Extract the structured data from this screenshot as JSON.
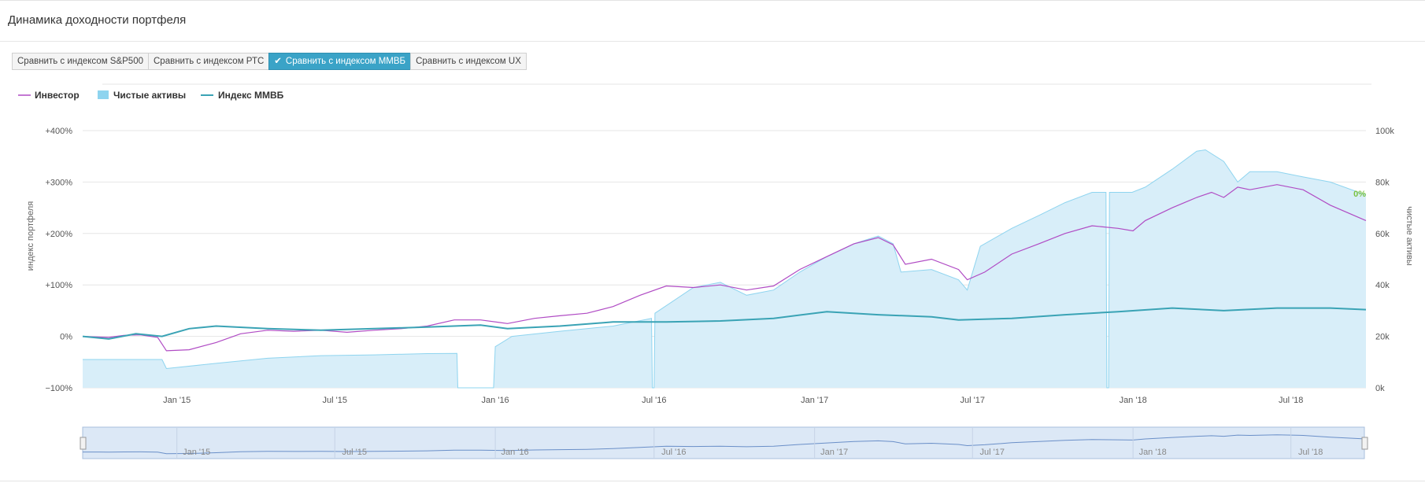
{
  "panel": {
    "title": "Динамика доходности портфеля"
  },
  "compare_buttons": [
    {
      "label": "Сравнить с индексом S&P500",
      "active": false
    },
    {
      "label": "Сравнить с индексом РТС",
      "active": false
    },
    {
      "label": "Сравнить с индексом ММВБ",
      "active": true
    },
    {
      "label": "Сравнить с индексом UX",
      "active": false
    }
  ],
  "icons": {
    "active_check": "check-icon"
  },
  "colors": {
    "investor": "#b04bc4",
    "net_assets_fill": "#d8eef9",
    "net_assets_line": "#8ed4ef",
    "index_line": "#3aa3b5",
    "zero_label": "#7cc242",
    "grid": "#e6e6e6",
    "navigator_fill": "#dce8f6",
    "navigator_line": "#6a8fc8"
  },
  "chart_data": {
    "type": "line",
    "legend": [
      "Инвестор",
      "Чистые активы",
      "Индекс ММВБ"
    ],
    "legend_position": "top-left",
    "y_left": {
      "label": "индекс портфеля",
      "ticks": [
        "+400%",
        "+300%",
        "+200%",
        "+100%",
        "0%",
        "−100%"
      ],
      "range": [
        -100,
        400
      ],
      "unit": "%"
    },
    "y_right": {
      "label": "чистые активы",
      "ticks": [
        "100k",
        "80k",
        "60k",
        "40k",
        "20k",
        "0k"
      ],
      "range": [
        0,
        100000
      ]
    },
    "x_ticks": [
      "Jan '15",
      "Jul '15",
      "Jan '16",
      "Jul '16",
      "Jan '17",
      "Jul '17",
      "Jan '18",
      "Jul '18"
    ],
    "x_tick_dates": [
      "2015-01-01",
      "2015-07-01",
      "2016-01-01",
      "2016-07-01",
      "2017-01-01",
      "2017-07-01",
      "2018-01-01",
      "2018-07-01"
    ],
    "x_range": [
      "2014-09-15",
      "2018-09-25"
    ],
    "end_label": "0%",
    "grid": true,
    "series": [
      {
        "name": "Инвестор",
        "axis": "left",
        "kind": "line",
        "points": [
          [
            "2014-09-15",
            0
          ],
          [
            "2014-10-15",
            -2
          ],
          [
            "2014-11-01",
            2
          ],
          [
            "2014-11-20",
            3
          ],
          [
            "2014-12-10",
            -2
          ],
          [
            "2014-12-20",
            -28
          ],
          [
            "2015-01-15",
            -26
          ],
          [
            "2015-02-15",
            -12
          ],
          [
            "2015-03-15",
            5
          ],
          [
            "2015-04-15",
            12
          ],
          [
            "2015-05-15",
            10
          ],
          [
            "2015-06-15",
            12
          ],
          [
            "2015-07-15",
            8
          ],
          [
            "2015-08-15",
            12
          ],
          [
            "2015-09-15",
            15
          ],
          [
            "2015-10-15",
            20
          ],
          [
            "2015-11-15",
            32
          ],
          [
            "2015-12-15",
            32
          ],
          [
            "2016-01-15",
            25
          ],
          [
            "2016-02-15",
            35
          ],
          [
            "2016-03-15",
            40
          ],
          [
            "2016-04-15",
            45
          ],
          [
            "2016-05-15",
            58
          ],
          [
            "2016-06-15",
            80
          ],
          [
            "2016-07-15",
            98
          ],
          [
            "2016-08-15",
            95
          ],
          [
            "2016-09-15",
            100
          ],
          [
            "2016-10-15",
            90
          ],
          [
            "2016-11-15",
            98
          ],
          [
            "2016-12-15",
            130
          ],
          [
            "2017-01-15",
            155
          ],
          [
            "2017-02-15",
            180
          ],
          [
            "2017-03-15",
            192
          ],
          [
            "2017-04-01",
            178
          ],
          [
            "2017-04-15",
            140
          ],
          [
            "2017-05-15",
            150
          ],
          [
            "2017-06-15",
            130
          ],
          [
            "2017-06-25",
            110
          ],
          [
            "2017-07-15",
            125
          ],
          [
            "2017-08-15",
            160
          ],
          [
            "2017-09-15",
            180
          ],
          [
            "2017-10-15",
            200
          ],
          [
            "2017-11-15",
            215
          ],
          [
            "2017-12-15",
            210
          ],
          [
            "2018-01-01",
            205
          ],
          [
            "2018-01-15",
            225
          ],
          [
            "2018-02-15",
            250
          ],
          [
            "2018-03-15",
            270
          ],
          [
            "2018-04-01",
            280
          ],
          [
            "2018-04-15",
            270
          ],
          [
            "2018-05-01",
            290
          ],
          [
            "2018-05-15",
            285
          ],
          [
            "2018-06-15",
            295
          ],
          [
            "2018-07-15",
            285
          ],
          [
            "2018-08-15",
            255
          ],
          [
            "2018-09-25",
            225
          ]
        ]
      },
      {
        "name": "Чистые активы",
        "axis": "right",
        "kind": "area",
        "points": [
          [
            "2014-09-15",
            11000
          ],
          [
            "2014-12-15",
            11000
          ],
          [
            "2014-12-20",
            7500
          ],
          [
            "2015-02-15",
            9500
          ],
          [
            "2015-04-15",
            11500
          ],
          [
            "2015-06-15",
            12500
          ],
          [
            "2015-08-15",
            12800
          ],
          [
            "2015-10-15",
            13300
          ],
          [
            "2015-11-18",
            13400
          ],
          [
            "2015-11-19",
            0
          ],
          [
            "2015-12-30",
            0
          ],
          [
            "2016-01-01",
            16000
          ],
          [
            "2016-01-20",
            20000
          ],
          [
            "2016-03-15",
            22000
          ],
          [
            "2016-05-15",
            24000
          ],
          [
            "2016-06-28",
            27000
          ],
          [
            "2016-06-29",
            0
          ],
          [
            "2016-07-01",
            0
          ],
          [
            "2016-07-02",
            29000
          ],
          [
            "2016-08-15",
            39000
          ],
          [
            "2016-09-15",
            41000
          ],
          [
            "2016-10-15",
            36000
          ],
          [
            "2016-11-15",
            38000
          ],
          [
            "2016-12-15",
            45000
          ],
          [
            "2017-01-15",
            51000
          ],
          [
            "2017-02-15",
            56000
          ],
          [
            "2017-03-15",
            59000
          ],
          [
            "2017-04-01",
            56000
          ],
          [
            "2017-04-10",
            45000
          ],
          [
            "2017-05-15",
            46000
          ],
          [
            "2017-06-15",
            42000
          ],
          [
            "2017-06-25",
            38000
          ],
          [
            "2017-07-10",
            55000
          ],
          [
            "2017-08-15",
            62000
          ],
          [
            "2017-09-15",
            67000
          ],
          [
            "2017-10-15",
            72000
          ],
          [
            "2017-11-15",
            76000
          ],
          [
            "2017-12-01",
            76000
          ],
          [
            "2017-12-02",
            0
          ],
          [
            "2017-12-04",
            0
          ],
          [
            "2017-12-05",
            76000
          ],
          [
            "2017-12-31",
            76000
          ],
          [
            "2018-01-15",
            78000
          ],
          [
            "2018-02-15",
            85000
          ],
          [
            "2018-03-15",
            92000
          ],
          [
            "2018-03-25",
            92500
          ],
          [
            "2018-04-15",
            88000
          ],
          [
            "2018-05-01",
            80000
          ],
          [
            "2018-05-15",
            84000
          ],
          [
            "2018-06-15",
            84000
          ],
          [
            "2018-07-15",
            82000
          ],
          [
            "2018-08-15",
            80000
          ],
          [
            "2018-09-25",
            75000
          ]
        ]
      },
      {
        "name": "Индекс ММВБ",
        "axis": "left",
        "kind": "line",
        "points": [
          [
            "2014-09-15",
            0
          ],
          [
            "2014-10-15",
            -5
          ],
          [
            "2014-11-15",
            5
          ],
          [
            "2014-12-15",
            0
          ],
          [
            "2015-01-15",
            15
          ],
          [
            "2015-02-15",
            20
          ],
          [
            "2015-04-15",
            15
          ],
          [
            "2015-06-15",
            12
          ],
          [
            "2015-08-15",
            15
          ],
          [
            "2015-10-15",
            18
          ],
          [
            "2015-12-15",
            22
          ],
          [
            "2016-01-15",
            15
          ],
          [
            "2016-03-15",
            20
          ],
          [
            "2016-05-15",
            28
          ],
          [
            "2016-07-15",
            28
          ],
          [
            "2016-09-15",
            30
          ],
          [
            "2016-11-15",
            35
          ],
          [
            "2017-01-15",
            48
          ],
          [
            "2017-03-15",
            42
          ],
          [
            "2017-05-15",
            38
          ],
          [
            "2017-06-15",
            32
          ],
          [
            "2017-08-15",
            35
          ],
          [
            "2017-10-15",
            42
          ],
          [
            "2017-12-15",
            48
          ],
          [
            "2018-02-15",
            55
          ],
          [
            "2018-04-15",
            50
          ],
          [
            "2018-06-15",
            55
          ],
          [
            "2018-08-15",
            55
          ],
          [
            "2018-09-25",
            52
          ]
        ]
      }
    ]
  },
  "navigator": {
    "x_ticks": [
      "Jan '15",
      "Jul '15",
      "Jan '16",
      "Jul '16",
      "Jan '17",
      "Jul '17",
      "Jan '18",
      "Jul '18"
    ]
  }
}
